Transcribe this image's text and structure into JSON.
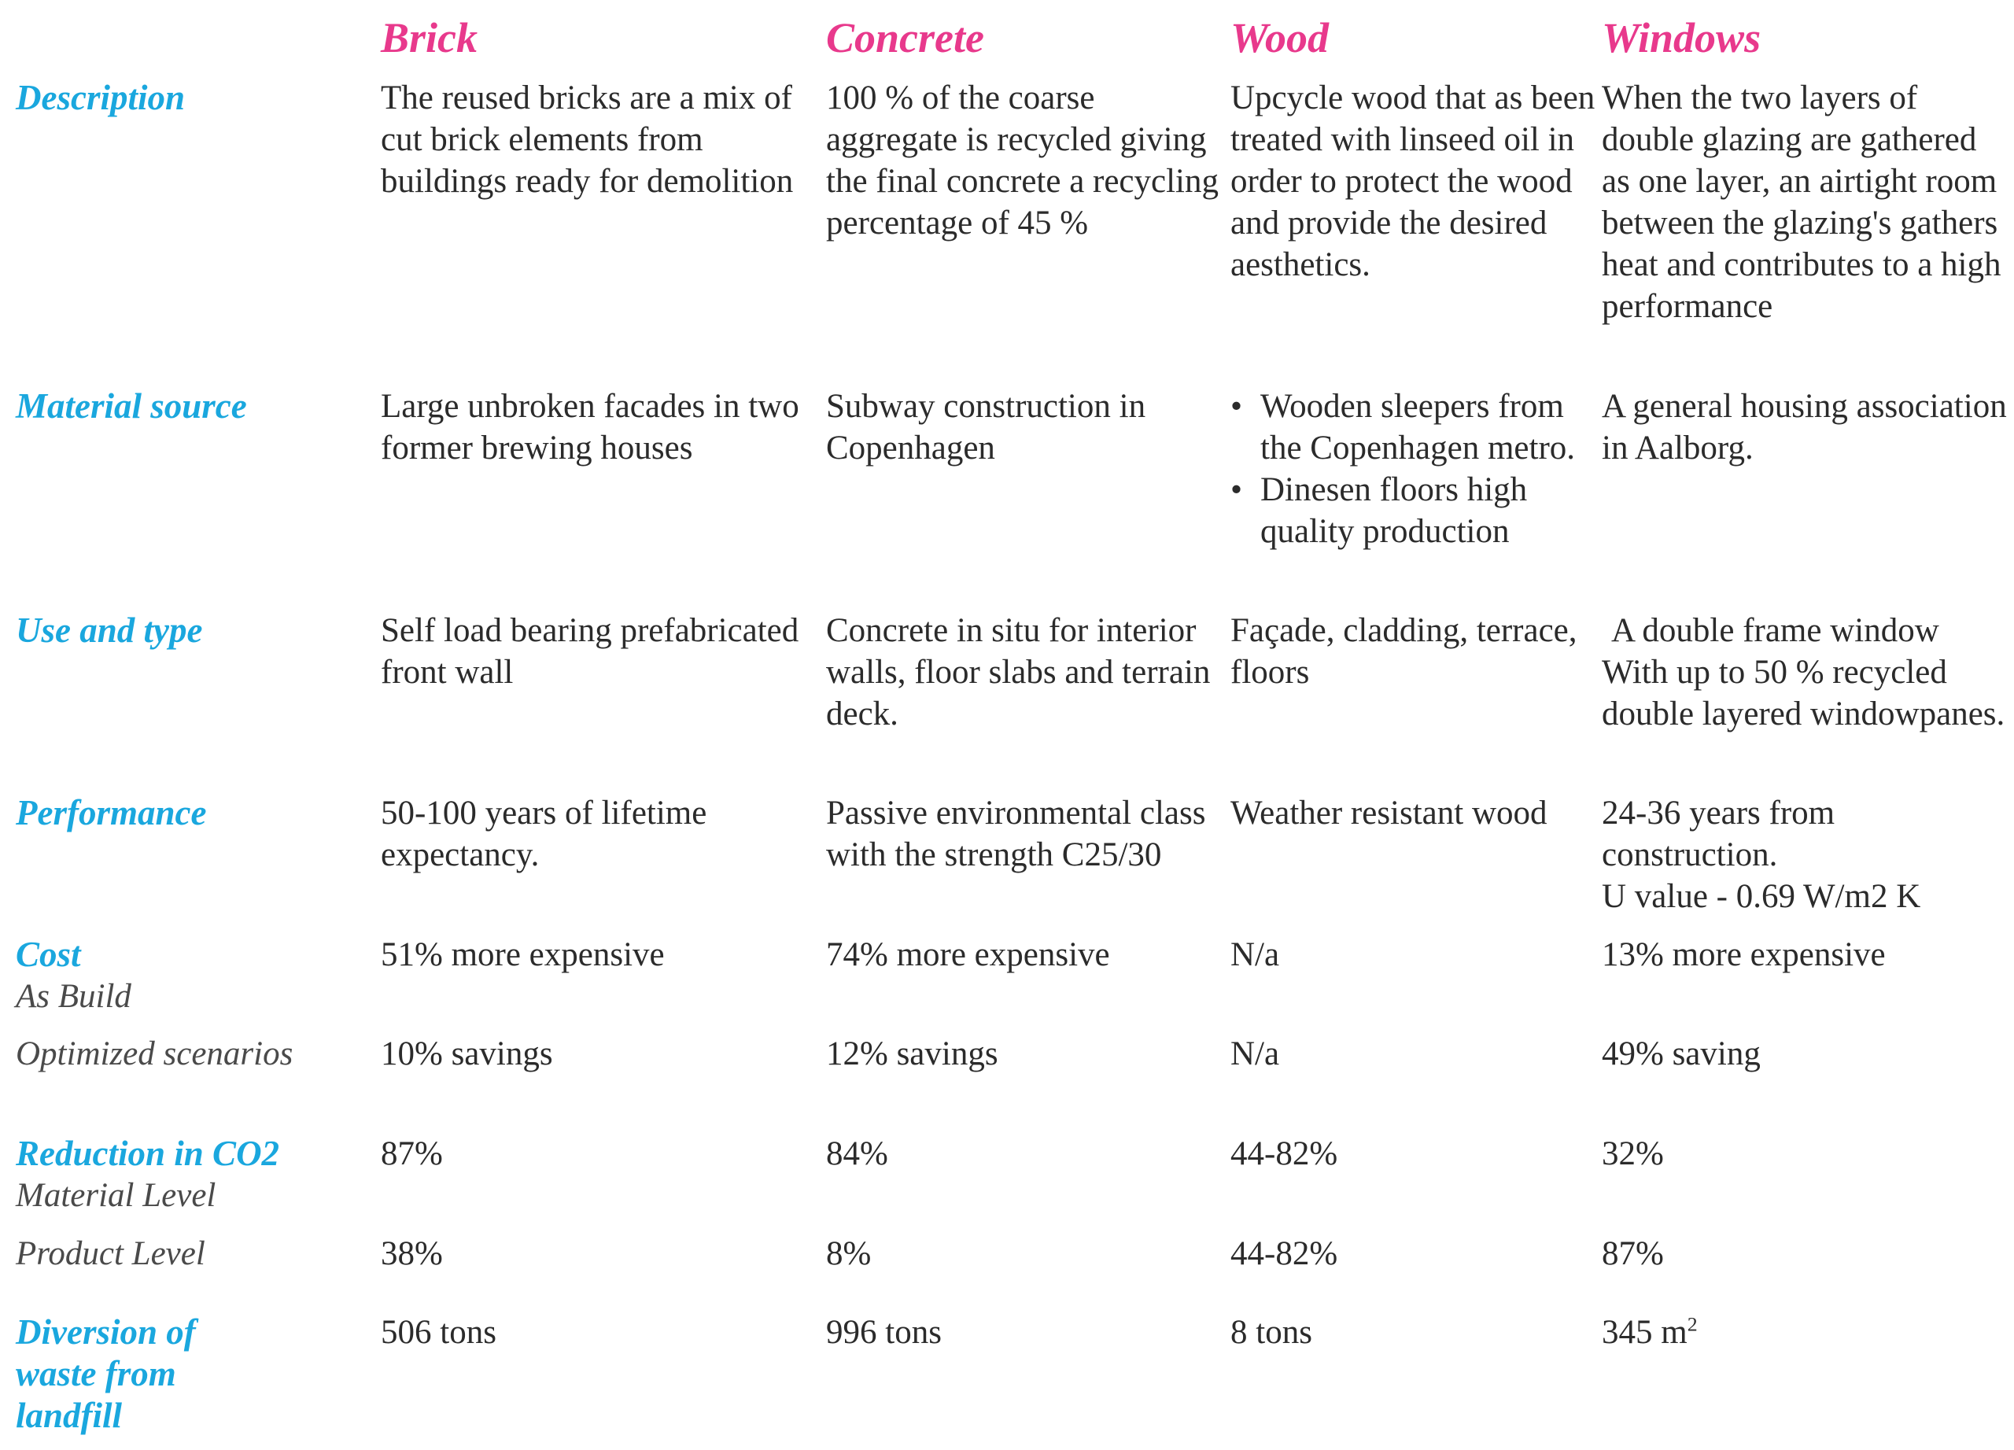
{
  "columns": [
    "Brick",
    "Concrete",
    "Wood",
    "Windows"
  ],
  "rows": {
    "description": {
      "label": "Description",
      "brick": "The reused bricks are a mix of cut brick elements from buildings ready for demolition",
      "concrete": "100 % of the coarse aggregate is recycled giving the final concrete a recycling percentage of 45 %",
      "wood": "Upcycle wood that as been treated with linseed oil in order to protect the wood and provide the desired aesthetics.",
      "windows": "When the two layers of double glazing are gathered as one layer, an airtight room between the glazing's gathers heat and contributes to a high performance"
    },
    "material_source": {
      "label": "Material source",
      "brick": "Large unbroken facades in two former brewing houses",
      "concrete": "Subway construction in Copenhagen",
      "wood_bullets": [
        "Wooden sleepers from the Copenhagen metro.",
        "Dinesen floors high quality production"
      ],
      "bullet_glyph": "•",
      "windows": "A general housing association in Aalborg."
    },
    "use_and_type": {
      "label": "Use and type",
      "brick": "Self load bearing prefabricated front wall",
      "concrete": "Concrete in situ for interior walls, floor slabs and terrain deck.",
      "wood": "Façade, cladding, terrace, floors",
      "windows_line1": "A double frame window",
      "windows_line2": "With up to 50 % recycled double layered windowpanes."
    },
    "performance": {
      "label": "Performance",
      "brick": "50-100 years of lifetime expectancy.",
      "concrete": "Passive environmental class with the strength C25/30",
      "wood": "Weather resistant wood",
      "windows_line1": "24-36 years from construction.",
      "windows_line2": "U value - 0.69 W/m2 K"
    },
    "cost": {
      "label": "Cost",
      "sub_as_build": "As Build",
      "as_build": {
        "brick": "51% more expensive",
        "concrete": "74% more expensive",
        "wood": "N/a",
        "windows": "13% more expensive"
      },
      "sub_optimized": "Optimized scenarios",
      "optimized": {
        "brick": "10% savings",
        "concrete": "12% savings",
        "wood": "N/a",
        "windows": "49% saving"
      }
    },
    "co2": {
      "label": "Reduction in CO2",
      "sub_material": "Material Level",
      "material": {
        "brick": "87%",
        "concrete": "84%",
        "wood": "44-82%",
        "windows": "32%"
      },
      "sub_product": "Product Level",
      "product": {
        "brick": "38%",
        "concrete": "8%",
        "wood": "44-82%",
        "windows": "87%"
      }
    },
    "diversion": {
      "label_line1": "Diversion of",
      "label_line2": "waste from",
      "label_line3": "landfill",
      "brick": "506 tons",
      "concrete": "996 tons",
      "wood": "8 tons",
      "windows_value": "345 m",
      "windows_sup": "2"
    }
  }
}
